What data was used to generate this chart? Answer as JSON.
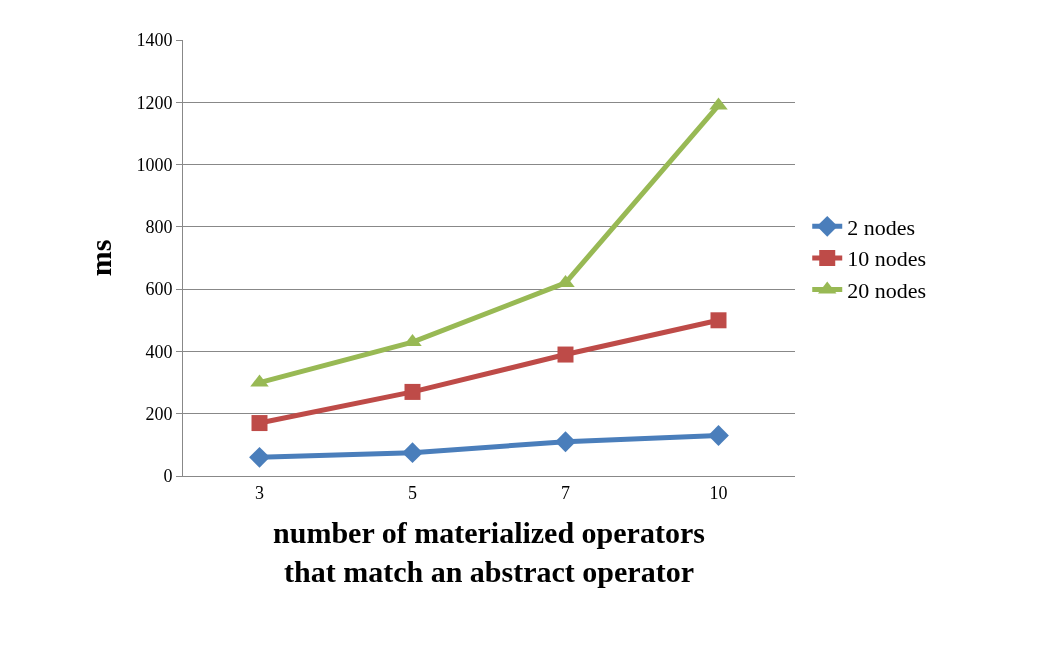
{
  "chart_data": {
    "type": "line",
    "xlabel": "number of materialized operators that match an abstract operator",
    "ylabel": "ms",
    "categories": [
      "3",
      "5",
      "7",
      "10"
    ],
    "series": [
      {
        "name": "2 nodes",
        "color": "#4a7ebb",
        "marker": "diamond",
        "values": [
          60,
          75,
          110,
          130
        ]
      },
      {
        "name": "10 nodes",
        "color": "#be4b48",
        "marker": "square",
        "values": [
          170,
          270,
          390,
          500
        ]
      },
      {
        "name": "20 nodes",
        "color": "#98b954",
        "marker": "triangle",
        "values": [
          300,
          430,
          620,
          1190
        ]
      }
    ],
    "ylim": [
      0,
      1400
    ],
    "yticks": [
      0,
      200,
      400,
      600,
      800,
      1000,
      1200,
      1400
    ],
    "grid": "y",
    "legend": "right",
    "line_style": "solid"
  }
}
